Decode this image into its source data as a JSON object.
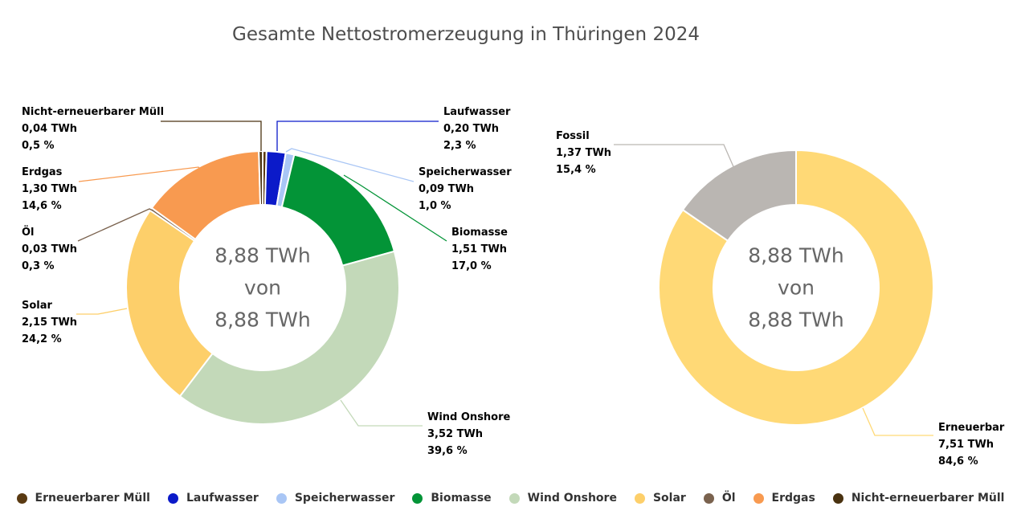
{
  "title": "Gesamte Nettostromerzeugung in Thüringen 2024",
  "chart_data": [
    {
      "type": "pie",
      "donut": true,
      "title": "Gesamte Nettostromerzeugung in Thüringen 2024",
      "center_text": [
        "8,88 TWh",
        "von",
        "8,88 TWh"
      ],
      "unit": "TWh",
      "slices": [
        {
          "name": "Erneuerbarer Müll",
          "value": 0.04,
          "value_label": "",
          "percent_label": "",
          "color": "#5a3a12",
          "labeled": false
        },
        {
          "name": "Laufwasser",
          "value": 0.2,
          "value_label": "0,20 TWh",
          "percent_label": "2,3 %",
          "color": "#0b1ac9",
          "labeled": true
        },
        {
          "name": "Speicherwasser",
          "value": 0.09,
          "value_label": "0,09 TWh",
          "percent_label": "1,0 %",
          "color": "#a9c6f5",
          "labeled": true
        },
        {
          "name": "Biomasse",
          "value": 1.51,
          "value_label": "1,51 TWh",
          "percent_label": "17,0 %",
          "color": "#039437",
          "labeled": true
        },
        {
          "name": "Wind Onshore",
          "value": 3.52,
          "value_label": "3,52 TWh",
          "percent_label": "39,6 %",
          "color": "#c3d9b9",
          "labeled": true
        },
        {
          "name": "Solar",
          "value": 2.15,
          "value_label": "2,15 TWh",
          "percent_label": "24,2 %",
          "color": "#fdcf6a",
          "labeled": true
        },
        {
          "name": "Öl",
          "value": 0.03,
          "value_label": "0,03 TWh",
          "percent_label": "0,3 %",
          "color": "#7a624e",
          "labeled": true
        },
        {
          "name": "Erdgas",
          "value": 1.3,
          "value_label": "1,30 TWh",
          "percent_label": "14,6 %",
          "color": "#f89a50",
          "labeled": true
        },
        {
          "name": "Nicht-erneuerbarer Müll",
          "value": 0.04,
          "value_label": "0,04 TWh",
          "percent_label": "0,5 %",
          "color": "#4a3210",
          "labeled": true
        }
      ]
    },
    {
      "type": "pie",
      "donut": true,
      "center_text": [
        "8,88 TWh",
        "von",
        "8,88 TWh"
      ],
      "unit": "TWh",
      "slices": [
        {
          "name": "Erneuerbar",
          "value": 7.51,
          "value_label": "7,51 TWh",
          "percent_label": "84,6 %",
          "color": "#ffd976",
          "labeled": true
        },
        {
          "name": "Fossil",
          "value": 1.37,
          "value_label": "1,37 TWh",
          "percent_label": "15,4 %",
          "color": "#bab6b2",
          "labeled": true
        }
      ]
    }
  ],
  "legend": [
    {
      "name": "Erneuerbarer Müll",
      "color": "#5a3a12"
    },
    {
      "name": "Laufwasser",
      "color": "#0b1ac9"
    },
    {
      "name": "Speicherwasser",
      "color": "#a9c6f5"
    },
    {
      "name": "Biomasse",
      "color": "#039437"
    },
    {
      "name": "Wind Onshore",
      "color": "#c3d9b9"
    },
    {
      "name": "Solar",
      "color": "#fdcf6a"
    },
    {
      "name": "Öl",
      "color": "#7a624e"
    },
    {
      "name": "Erdgas",
      "color": "#f89a50"
    },
    {
      "name": "Nicht-erneuerbarer Müll",
      "color": "#4a3210"
    }
  ]
}
